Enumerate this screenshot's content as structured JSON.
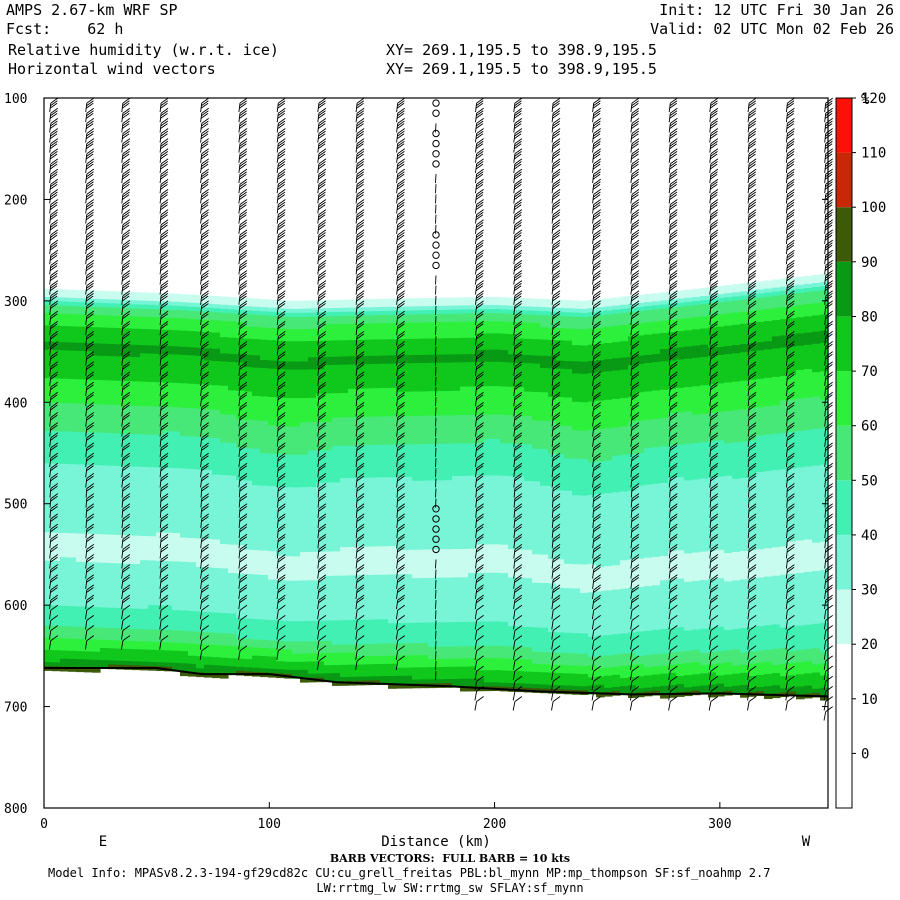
{
  "header": {
    "model": "AMPS 2.67-km WRF SP",
    "init": "Init: 12 UTC Fri 30 Jan 26",
    "fcst": "Fcst:    62 h",
    "valid": "Valid: 02 UTC Mon 02 Feb 26",
    "field1": "Relative humidity (w.r.t. ice)",
    "field2": "Horizontal wind vectors",
    "xy1": "XY= 269.1,195.5 to 398.9,195.5",
    "xy2": "XY= 269.1,195.5 to 398.9,195.5"
  },
  "footer": {
    "barb_note": "BARB VECTORS:  FULL BARB = 10 kts",
    "model_info": "Model Info: MPASv8.2.3-194-gf29cd82c CU:cu_grell_freitas PBL:bl_mynn MP:mp_thompson SF:sf_noahmp 2.7",
    "model_info2": "LW:rrtmg_lw SW:rrtmg_sw SFLAY:sf_mynn"
  },
  "chart_data": {
    "type": "heatmap",
    "title": "Relative humidity (w.r.t. ice)",
    "xlabel": "Distance (km)",
    "ylabel": "",
    "xlim": [
      0,
      348
    ],
    "ylim": [
      800,
      100
    ],
    "x_ticks": [
      0,
      100,
      200,
      300
    ],
    "y_ticks": [
      100,
      200,
      300,
      400,
      500,
      600,
      700,
      800
    ],
    "x_end_labels": {
      "left": "E",
      "right": "W"
    },
    "colorbar": {
      "unit": "%",
      "levels": [
        0,
        10,
        20,
        30,
        40,
        50,
        60,
        70,
        80,
        90,
        100,
        110,
        120
      ],
      "colors": [
        "#ffffff",
        "#ffffff",
        "#ffffff",
        "#c8fcee",
        "#78f4d6",
        "#42f0b4",
        "#48e878",
        "#2cf03c",
        "#10c81c",
        "#089a14",
        "#3c5a08",
        "#c82808",
        "#fc1008"
      ]
    },
    "rh_profile": [
      {
        "p": 100,
        "rh": 5
      },
      {
        "p": 270,
        "rh": 5
      },
      {
        "p": 285,
        "rh": 35
      },
      {
        "p": 300,
        "rh": 65
      },
      {
        "p": 320,
        "rh": 80
      },
      {
        "p": 340,
        "rh": 92
      },
      {
        "p": 360,
        "rh": 85
      },
      {
        "p": 385,
        "rh": 75
      },
      {
        "p": 420,
        "rh": 62
      },
      {
        "p": 460,
        "rh": 50
      },
      {
        "p": 500,
        "rh": 45
      },
      {
        "p": 540,
        "rh": 38
      },
      {
        "p": 570,
        "rh": 42
      },
      {
        "p": 600,
        "rh": 50
      },
      {
        "p": 625,
        "rh": 62
      },
      {
        "p": 640,
        "rh": 78
      },
      {
        "p": 655,
        "rh": 92
      },
      {
        "p": 662,
        "rh": 108
      }
    ],
    "upper_edge": [
      [
        0,
        290
      ],
      [
        60,
        295
      ],
      [
        110,
        302
      ],
      [
        150,
        300
      ],
      [
        200,
        298
      ],
      [
        240,
        302
      ],
      [
        290,
        290
      ],
      [
        348,
        275
      ]
    ],
    "terrain": [
      [
        0,
        662
      ],
      [
        50,
        662
      ],
      [
        70,
        668
      ],
      [
        100,
        668
      ],
      [
        130,
        676
      ],
      [
        180,
        680
      ],
      [
        220,
        685
      ],
      [
        260,
        688
      ],
      [
        300,
        687
      ],
      [
        348,
        690
      ]
    ],
    "wind_columns": [
      {
        "x": 3,
        "bottom": 635,
        "calm_levels": []
      },
      {
        "x": 19,
        "bottom": 640,
        "calm_levels": []
      },
      {
        "x": 35,
        "bottom": 642,
        "calm_levels": []
      },
      {
        "x": 52,
        "bottom": 642,
        "calm_levels": []
      },
      {
        "x": 70,
        "bottom": 645,
        "calm_levels": []
      },
      {
        "x": 87,
        "bottom": 645,
        "calm_levels": []
      },
      {
        "x": 104,
        "bottom": 648,
        "calm_levels": []
      },
      {
        "x": 122,
        "bottom": 655,
        "calm_levels": []
      },
      {
        "x": 139,
        "bottom": 660,
        "calm_levels": []
      },
      {
        "x": 157,
        "bottom": 662,
        "calm_levels": []
      },
      {
        "x": 174,
        "bottom": 670,
        "calm_levels": [
          110,
          140,
          160,
          240,
          260,
          510,
          530,
          545
        ]
      },
      {
        "x": 192,
        "bottom": 700,
        "calm_levels": []
      },
      {
        "x": 209,
        "bottom": 702,
        "calm_levels": []
      },
      {
        "x": 226,
        "bottom": 703,
        "calm_levels": []
      },
      {
        "x": 244,
        "bottom": 704,
        "calm_levels": []
      },
      {
        "x": 261,
        "bottom": 704,
        "calm_levels": []
      },
      {
        "x": 278,
        "bottom": 704,
        "calm_levels": []
      },
      {
        "x": 296,
        "bottom": 704,
        "calm_levels": []
      },
      {
        "x": 313,
        "bottom": 704,
        "calm_levels": []
      },
      {
        "x": 330,
        "bottom": 704,
        "calm_levels": []
      },
      {
        "x": 347,
        "bottom": 705,
        "calm_levels": []
      }
    ]
  }
}
